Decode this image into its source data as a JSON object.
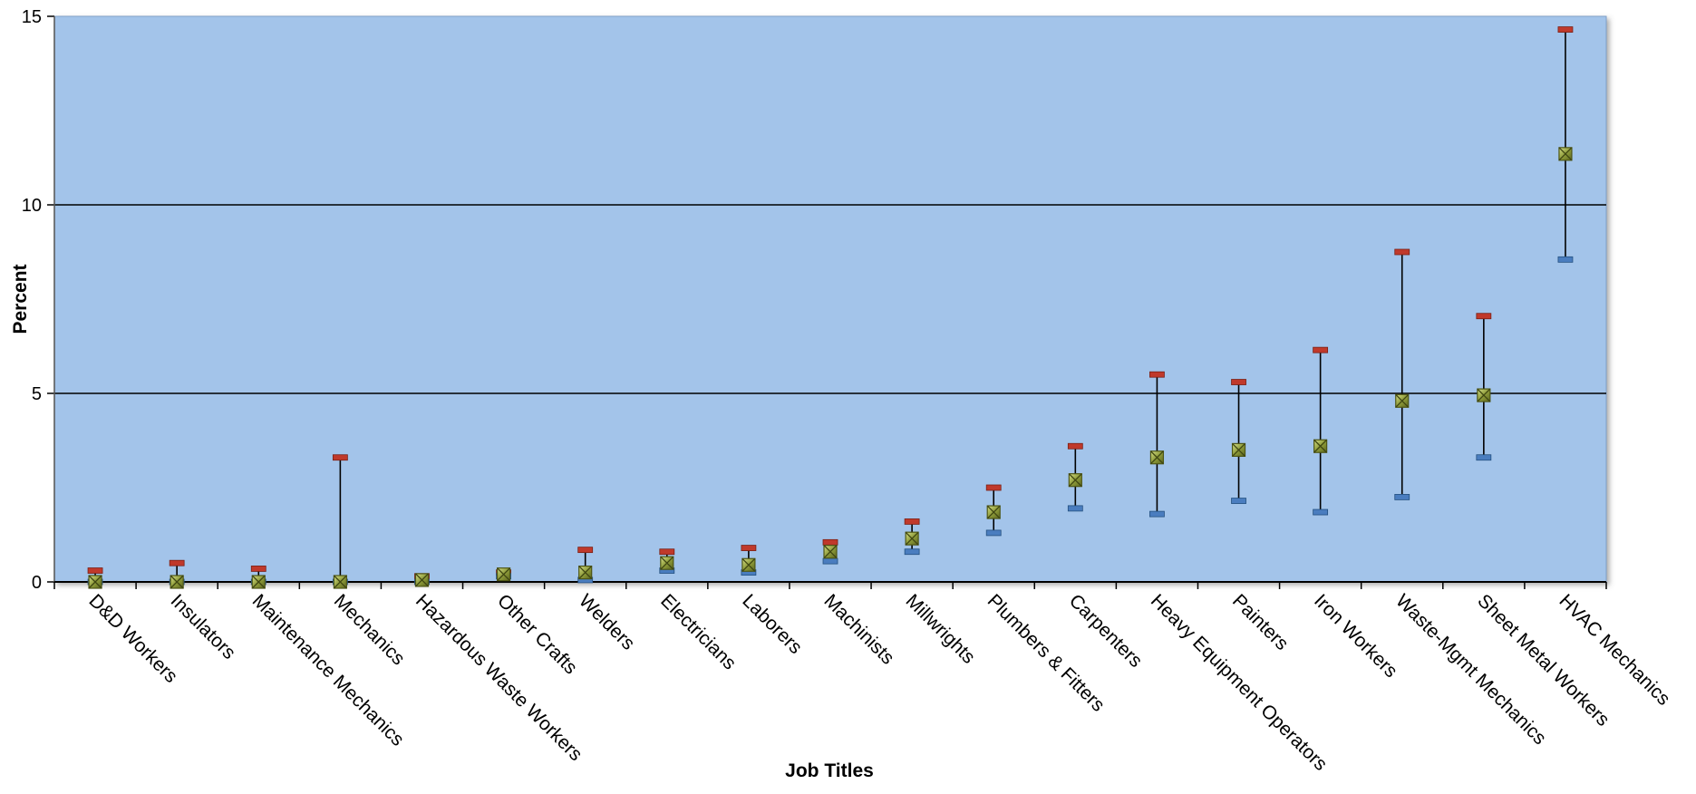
{
  "chart_data": {
    "type": "scatter",
    "xlabel": "Job Titles",
    "ylabel": "Percent",
    "ylim": [
      0,
      15
    ],
    "yticks": [
      0,
      5,
      10,
      15
    ],
    "grid": true,
    "categories": [
      "D&D Workers",
      "Insulators",
      "Maintenance Mechanics",
      "Mechanics",
      "Hazardous Waste Workers",
      "Other Crafts",
      "Welders",
      "Electricians",
      "Laborers",
      "Machinists",
      "Millwrights",
      "Plumbers & Fitters",
      "Carpenters",
      "Heavy Equipment Operators",
      "Painters",
      "Iron Workers",
      "Waste-Mgmt Mechanics",
      "Sheet Metal Workers",
      "HVAC Mechanics"
    ],
    "series": [
      {
        "values": [
          0,
          0,
          0,
          0,
          0.05,
          0.2,
          0.25,
          0.5,
          0.45,
          0.8,
          1.15,
          1.85,
          2.7,
          3.3,
          3.5,
          3.6,
          4.8,
          4.95,
          11.35
        ]
      }
    ],
    "upper": [
      0.3,
      0.5,
      0.35,
      3.3,
      0.15,
      0.25,
      0.85,
      0.8,
      0.9,
      1.05,
      1.6,
      2.5,
      3.6,
      5.5,
      5.3,
      6.15,
      8.75,
      7.05,
      14.65
    ],
    "lower": [
      0,
      0,
      0,
      0,
      0,
      0.15,
      0.05,
      0.3,
      0.25,
      0.55,
      0.8,
      1.3,
      1.95,
      1.8,
      2.15,
      1.85,
      2.25,
      3.3,
      8.55
    ],
    "colors": {
      "plot_bg": "#a3c4ea",
      "marker": "#8f9c3a",
      "upper_cap": "#c0392b",
      "lower_cap": "#4a7dbf"
    }
  }
}
